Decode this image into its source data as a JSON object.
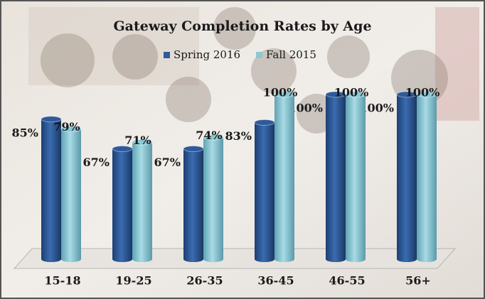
{
  "chart_data": {
    "type": "bar",
    "title": "Gateway Completion Rates by Age",
    "categories": [
      "15-18",
      "19-25",
      "26-35",
      "36-45",
      "46-55",
      "56+"
    ],
    "series": [
      {
        "name": "Spring 2016",
        "color": "#2e5a9a",
        "values": [
          85,
          67,
          67,
          83,
          100,
          100
        ],
        "value_labels": [
          "85%",
          "67%",
          "67%",
          "83%",
          "100%",
          "100%"
        ]
      },
      {
        "name": "Fall 2015",
        "color": "#8cc7d4",
        "values": [
          79,
          71,
          74,
          100,
          100,
          100
        ],
        "value_labels": [
          "79%",
          "71%",
          "74%",
          "100%",
          "100%",
          "100%"
        ]
      }
    ]
  }
}
